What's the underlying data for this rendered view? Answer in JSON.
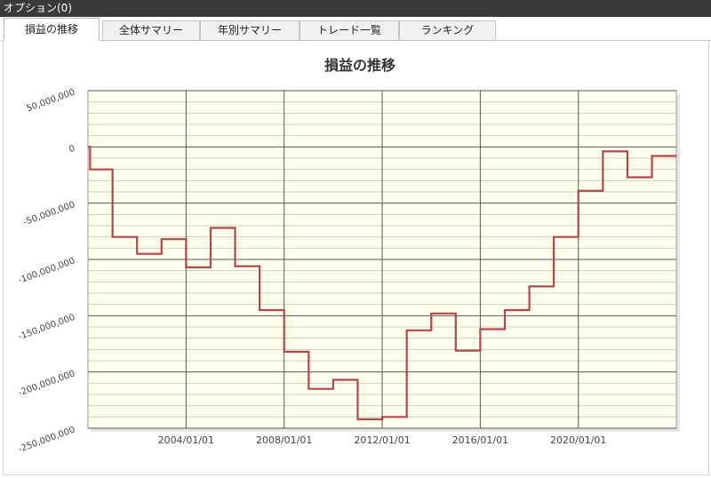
{
  "window": {
    "title": "オプション(0)"
  },
  "tabs": [
    {
      "label": "損益の推移",
      "active": true
    },
    {
      "label": "全体サマリー",
      "active": false
    },
    {
      "label": "年別サマリー",
      "active": false
    },
    {
      "label": "トレード一覧",
      "active": false
    },
    {
      "label": "ランキング",
      "active": false
    }
  ],
  "colors": {
    "plot_background": "#ffffee",
    "series_line": "#b04848",
    "titlebar": "#3a3a3a"
  },
  "chart_data": {
    "type": "line",
    "step": true,
    "title": "損益の推移",
    "ylim": [
      -250000000,
      50000000
    ],
    "yticks": [
      50000000,
      0,
      -50000000,
      -100000000,
      -150000000,
      -200000000,
      -250000000
    ],
    "ytick_labels": [
      "50,000,000",
      "0",
      "-50,000,000",
      "-100,000,000",
      "-150,000,000",
      "-200,000,000",
      "-250,000,000"
    ],
    "xlim": [
      "2000/01/01",
      "2023/12/31"
    ],
    "xticks": [
      "2004/01/01",
      "2008/01/01",
      "2012/01/01",
      "2016/01/01",
      "2020/01/01"
    ],
    "grid": true,
    "x": [
      "2000/01/01",
      "2000/02/01",
      "2001/01/01",
      "2002/01/01",
      "2003/01/01",
      "2004/01/01",
      "2005/01/01",
      "2006/01/01",
      "2007/01/01",
      "2008/01/01",
      "2009/01/01",
      "2010/01/01",
      "2011/01/01",
      "2012/01/01",
      "2013/01/01",
      "2014/01/01",
      "2015/01/01",
      "2016/01/01",
      "2017/01/01",
      "2018/01/01",
      "2019/01/01",
      "2020/01/01",
      "2021/01/01",
      "2022/01/01",
      "2023/01/01",
      "2023/12/31"
    ],
    "y": [
      0,
      -20000000,
      -80000000,
      -95000000,
      -82000000,
      -107000000,
      -72000000,
      -106000000,
      -145000000,
      -182000000,
      -215000000,
      -207000000,
      -242000000,
      -240000000,
      -163000000,
      -148000000,
      -181000000,
      -162000000,
      -145000000,
      -124000000,
      -80000000,
      -39000000,
      -4000000,
      -27000000,
      -8000000,
      -8000000
    ]
  }
}
